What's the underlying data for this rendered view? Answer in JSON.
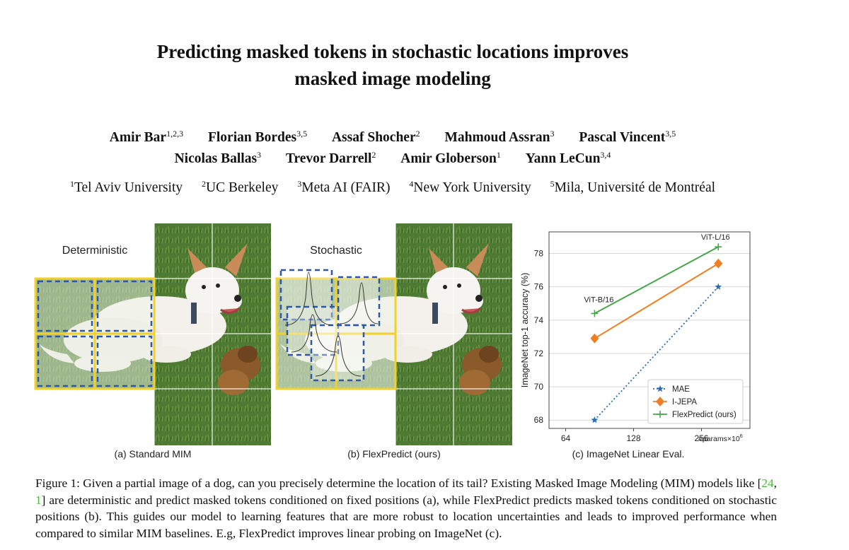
{
  "title": {
    "line1": "Predicting masked tokens in stochastic locations improves",
    "line2": "masked image modeling"
  },
  "authors": {
    "row1": [
      {
        "name": "Amir Bar",
        "sup": "1,2,3"
      },
      {
        "name": "Florian Bordes",
        "sup": "3,5"
      },
      {
        "name": "Assaf Shocher",
        "sup": "2"
      },
      {
        "name": "Mahmoud Assran",
        "sup": "3"
      },
      {
        "name": "Pascal Vincent",
        "sup": "3,5"
      }
    ],
    "row2": [
      {
        "name": "Nicolas Ballas",
        "sup": "3"
      },
      {
        "name": "Trevor Darrell",
        "sup": "2"
      },
      {
        "name": "Amir Globerson",
        "sup": "1"
      },
      {
        "name": "Yann LeCun",
        "sup": "3,4"
      }
    ]
  },
  "affiliations": [
    {
      "sup": "1",
      "name": "Tel Aviv University"
    },
    {
      "sup": "2",
      "name": "UC Berkeley"
    },
    {
      "sup": "3",
      "name": "Meta AI (FAIR)"
    },
    {
      "sup": "4",
      "name": "New York University"
    },
    {
      "sup": "5",
      "name": "Mila, Université de Montréal"
    }
  ],
  "figure": {
    "panel_a": {
      "label": "Deterministic",
      "caption": "(a) Standard MIM"
    },
    "panel_b": {
      "label": "Stochastic",
      "caption": "(b) FlexPredict (ours)"
    },
    "panel_c": {
      "caption": "(c) ImageNet Linear Eval."
    }
  },
  "colors": {
    "grass": "#4f7a33",
    "mask_blue": "#2f57a8",
    "mask_yellow": "#f2d12a",
    "mae": "#2b6cb0",
    "ijepa": "#f07f24",
    "flexpredict": "#47a64a"
  },
  "chart_data": {
    "type": "line",
    "x_scale": "log2",
    "x_ticks": [
      64,
      128,
      256
    ],
    "xlabel": "#params×10",
    "xlabel_sup": "6",
    "ylabel": "ImageNet top-1 accuracy (%)",
    "ylim": [
      67.5,
      79.3
    ],
    "y_ticks": [
      68,
      70,
      72,
      74,
      76,
      78
    ],
    "grid": "horizontal",
    "legend_position": "bottom-right",
    "series": [
      {
        "name": "MAE",
        "marker": "star",
        "style": "dotted",
        "x": [
          86,
          304
        ],
        "y": [
          68.0,
          76.0
        ]
      },
      {
        "name": "I-JEPA",
        "marker": "diamond",
        "style": "solid",
        "x": [
          86,
          304
        ],
        "y": [
          72.9,
          77.4
        ]
      },
      {
        "name": "FlexPredict (ours)",
        "marker": "plus",
        "style": "solid",
        "x": [
          86,
          304
        ],
        "y": [
          74.4,
          78.4
        ]
      }
    ],
    "annotations": [
      {
        "text": "ViT-B/16",
        "x": 86,
        "y": 74.4
      },
      {
        "text": "ViT-L/16",
        "x": 304,
        "y": 78.4
      }
    ]
  },
  "caption": {
    "label": "Figure 1:",
    "part1": " Given a partial image of a dog, can you precisely determine the location of its tail? Existing Masked Image Modeling (MIM) models like [",
    "ref1": "24",
    "sep": ", ",
    "ref2": "1",
    "part2": "] are deterministic and predict masked tokens conditioned on fixed positions (a), while FlexPredict predicts masked tokens conditioned on stochastic positions (b). This guides our model to learning features that are more robust to location uncertainties and leads to improved performance when compared to similar MIM baselines. E.g, FlexPredict improves linear probing on ImageNet (c)."
  }
}
